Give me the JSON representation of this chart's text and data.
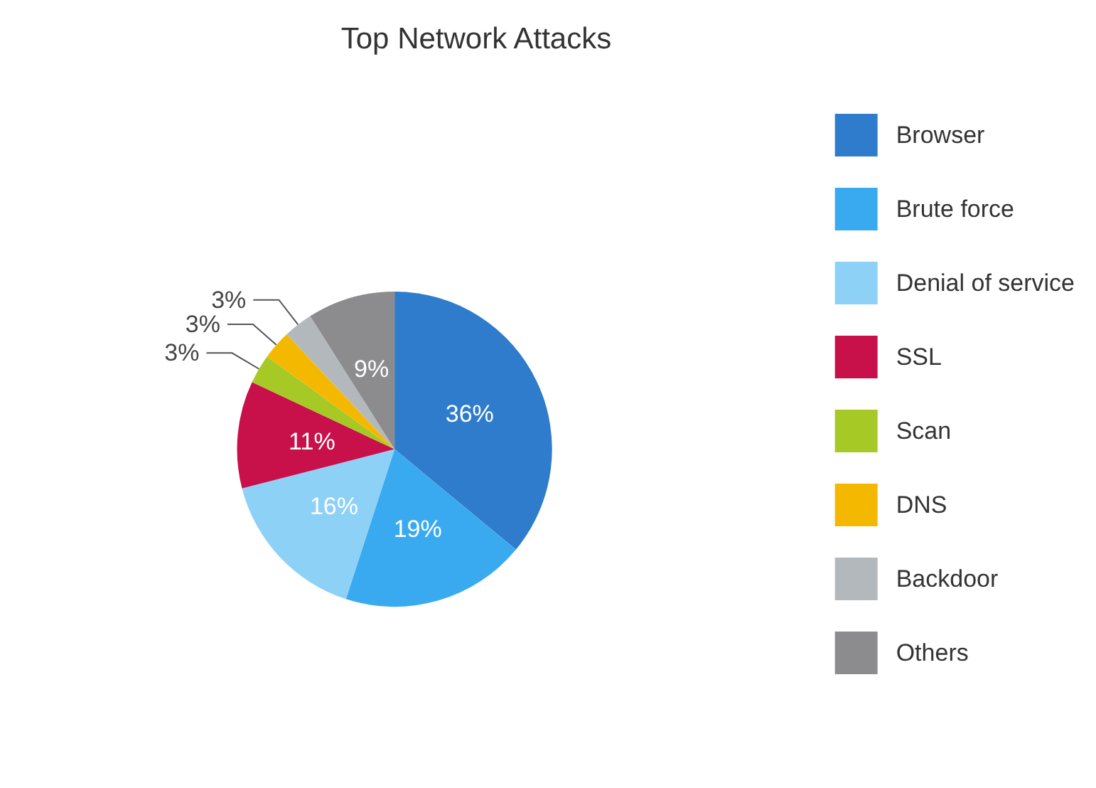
{
  "chart_data": {
    "type": "pie",
    "title": "Top Network Attacks",
    "categories": [
      "Browser",
      "Brute force",
      "Denial of service",
      "SSL",
      "Scan",
      "DNS",
      "Backdoor",
      "Others"
    ],
    "values": [
      36,
      19,
      16,
      11,
      3,
      3,
      3,
      9
    ],
    "value_labels": [
      "36%",
      "19%",
      "16%",
      "11%",
      "3%",
      "3%",
      "3%",
      "9%"
    ],
    "colors": [
      "#2e7ccb",
      "#3aaaf0",
      "#8dd1f7",
      "#c8104a",
      "#a6c925",
      "#f5b800",
      "#b3b8bd",
      "#8c8c8e"
    ],
    "legend": "right"
  }
}
